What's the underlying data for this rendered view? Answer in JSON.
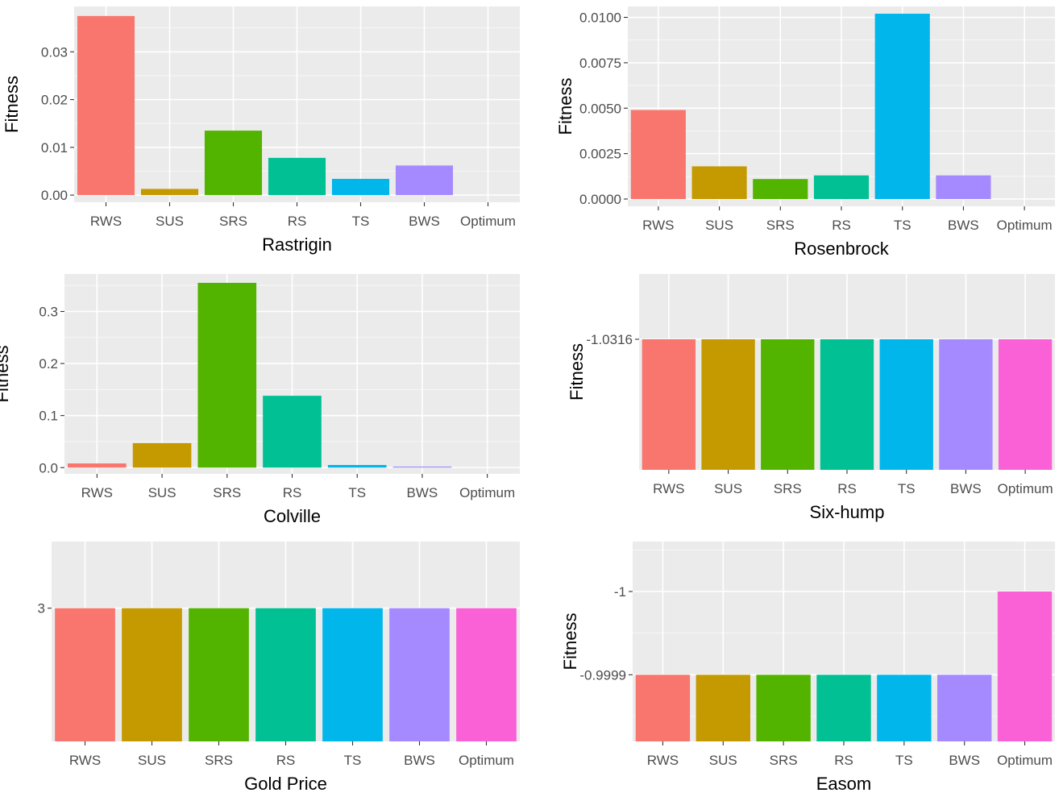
{
  "colors": {
    "panel_background": "#EBEBEB",
    "grid_major": "#FFFFFF",
    "tick_text": "#4D4D4D",
    "axis_title": "#000000"
  },
  "chart_data": [
    {
      "type": "bar",
      "xlabel": "Rastrigin",
      "ylabel": "Fitness",
      "categories": [
        "RWS",
        "SUS",
        "SRS",
        "RS",
        "TS",
        "BWS",
        "Optimum"
      ],
      "values": [
        0.0375,
        0.0013,
        0.0135,
        0.0078,
        0.0034,
        0.0062,
        0
      ],
      "colors": [
        "#F8766D",
        "#C49A00",
        "#53B400",
        "#00C094",
        "#00B6EB",
        "#A58AFF",
        "#FB61D7"
      ],
      "ylim": [
        -0.0015,
        0.0395
      ],
      "yticks": [
        0,
        0.01,
        0.02,
        0.03
      ],
      "ytick_labels": [
        "0.00",
        "0.01",
        "0.02",
        "0.03"
      ],
      "grid": true,
      "legend": "none"
    },
    {
      "type": "bar",
      "xlabel": "Rosenbrock",
      "ylabel": "Fitness",
      "categories": [
        "RWS",
        "SUS",
        "SRS",
        "RS",
        "TS",
        "BWS",
        "Optimum"
      ],
      "values": [
        0.0049,
        0.0018,
        0.0011,
        0.0013,
        0.0102,
        0.0013,
        0
      ],
      "colors": [
        "#F8766D",
        "#C49A00",
        "#53B400",
        "#00C094",
        "#00B6EB",
        "#A58AFF",
        "#FB61D7"
      ],
      "ylim": [
        -0.0004,
        0.0106
      ],
      "yticks": [
        0,
        0.0025,
        0.005,
        0.0075,
        0.01
      ],
      "ytick_labels": [
        "0.0000",
        "0.0025",
        "0.0050",
        "0.0075",
        "0.0100"
      ],
      "grid": true,
      "legend": "none"
    },
    {
      "type": "bar",
      "xlabel": "Colville",
      "ylabel": "Fitness",
      "categories": [
        "RWS",
        "SUS",
        "SRS",
        "RS",
        "TS",
        "BWS",
        "Optimum"
      ],
      "values": [
        0.008,
        0.047,
        0.355,
        0.138,
        0.005,
        0.002,
        0
      ],
      "colors": [
        "#F8766D",
        "#C49A00",
        "#53B400",
        "#00C094",
        "#00B6EB",
        "#A58AFF",
        "#FB61D7"
      ],
      "ylim": [
        -0.012,
        0.372
      ],
      "yticks": [
        0,
        0.1,
        0.2,
        0.3
      ],
      "ytick_labels": [
        "0.0",
        "0.1",
        "0.2",
        "0.3"
      ],
      "grid": true,
      "legend": "none"
    },
    {
      "type": "bar",
      "xlabel": "Six-hump",
      "ylabel": "Fitness",
      "categories": [
        "RWS",
        "SUS",
        "SRS",
        "RS",
        "TS",
        "BWS",
        "Optimum"
      ],
      "values": [
        -1.0316,
        -1.0316,
        -1.0316,
        -1.0316,
        -1.0316,
        -1.0316,
        -1.0316
      ],
      "colors": [
        "#F8766D",
        "#C49A00",
        "#53B400",
        "#00C094",
        "#00B6EB",
        "#A58AFF",
        "#FB61D7"
      ],
      "ylim": [
        0,
        1.5
      ],
      "yticks": [
        1
      ],
      "ytick_labels": [
        "-1.0316"
      ],
      "value_scale": "bar height proportional to the magnitude of the negative value",
      "grid": true,
      "legend": "none"
    },
    {
      "type": "bar",
      "xlabel": "Gold Price",
      "ylabel": "Fitness",
      "categories": [
        "RWS",
        "SUS",
        "SRS",
        "RS",
        "TS",
        "BWS",
        "Optimum"
      ],
      "values": [
        3,
        3,
        3,
        3,
        3,
        3,
        3
      ],
      "colors": [
        "#F8766D",
        "#C49A00",
        "#53B400",
        "#00C094",
        "#00B6EB",
        "#A58AFF",
        "#FB61D7"
      ],
      "ylim": [
        0,
        4.5
      ],
      "yticks": [
        3
      ],
      "ytick_labels": [
        "3"
      ],
      "grid": true,
      "legend": "none"
    },
    {
      "type": "bar",
      "xlabel": "Easom",
      "ylabel": "Fitness",
      "categories": [
        "RWS",
        "SUS",
        "SRS",
        "RS",
        "TS",
        "BWS",
        "Optimum"
      ],
      "values": [
        -0.9999,
        -0.9999,
        -0.9999,
        -0.9999,
        -0.9999,
        -0.9999,
        -1
      ],
      "colors": [
        "#F8766D",
        "#C49A00",
        "#53B400",
        "#00C094",
        "#00B6EB",
        "#A58AFF",
        "#FB61D7"
      ],
      "ylim": [
        -0.99982,
        -1.00006
      ],
      "yticks": [
        -0.9999,
        -1
      ],
      "ytick_labels": [
        "-0.9999",
        "-1"
      ],
      "value_scale": "reversed axis: bars grow toward more negative values",
      "grid": true,
      "legend": "none"
    }
  ]
}
